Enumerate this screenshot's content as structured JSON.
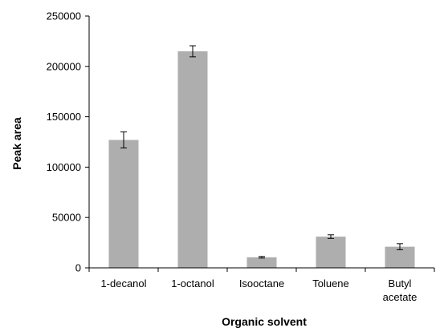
{
  "chart_data": {
    "type": "bar",
    "title": "",
    "xlabel": "Organic solvent",
    "ylabel": "Peak area",
    "ylim": [
      0,
      250000
    ],
    "yticks": [
      0,
      50000,
      100000,
      150000,
      200000,
      250000
    ],
    "categories": [
      [
        "1-decanol"
      ],
      [
        "1-octanol"
      ],
      [
        "Isooctane"
      ],
      [
        "Toluene"
      ],
      [
        "Butyl",
        "acetate"
      ]
    ],
    "values": [
      127000,
      215000,
      10500,
      31000,
      21000
    ],
    "error": [
      8000,
      5500,
      800,
      1800,
      3000
    ],
    "bar_color": "#aeaeae",
    "grid": false,
    "legend": "none"
  }
}
